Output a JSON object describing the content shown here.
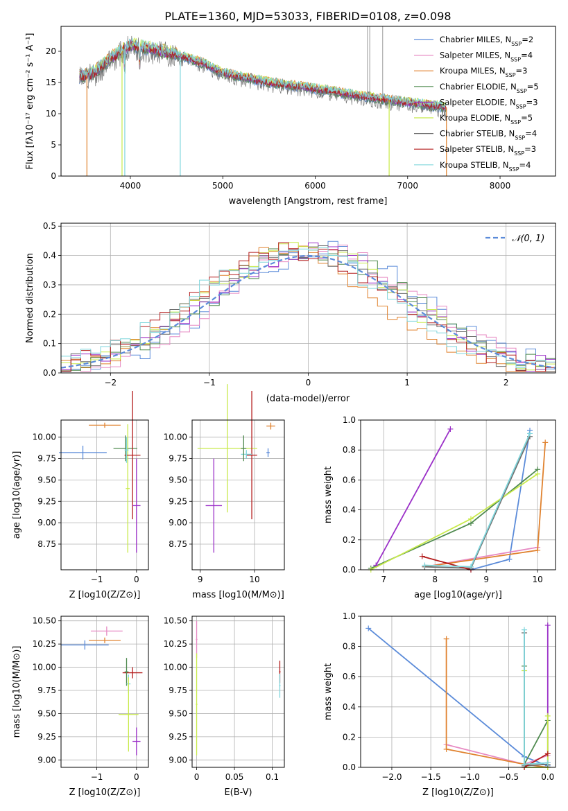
{
  "title": "PLATE=1360, MJD=53033, FIBERID=0108, z=0.098",
  "colors": {
    "Chabrier MILES": "#5b8bd9",
    "Salpeter MILES": "#e78ac3",
    "Kroupa MILES": "#e0822f",
    "Chabrier ELODIE": "#4f8a4f",
    "Salpeter ELODIE": "#9b30c8",
    "Kroupa ELODIE": "#c8ea4a",
    "Chabrier STELIB": "#6e6e6e",
    "Salpeter STELIB": "#b31b1b",
    "Kroupa STELIB": "#7fd6dc"
  },
  "legend": [
    {
      "label": "Chabrier MILES, N",
      "n": "2",
      "key": "Chabrier MILES"
    },
    {
      "label": "Salpeter MILES, N",
      "n": "4",
      "key": "Salpeter MILES"
    },
    {
      "label": "Kroupa MILES, N",
      "n": "3",
      "key": "Kroupa MILES"
    },
    {
      "label": "Chabrier ELODIE, N",
      "n": "5",
      "key": "Chabrier ELODIE"
    },
    {
      "label": "Salpeter ELODIE, N",
      "n": "3",
      "key": "Salpeter ELODIE"
    },
    {
      "label": "Kroupa ELODIE, N",
      "n": "5",
      "key": "Kroupa ELODIE"
    },
    {
      "label": "Chabrier STELIB, N",
      "n": "4",
      "key": "Chabrier STELIB"
    },
    {
      "label": "Salpeter STELIB, N",
      "n": "3",
      "key": "Salpeter STELIB"
    },
    {
      "label": "Kroupa STELIB, N",
      "n": "4",
      "key": "Kroupa STELIB"
    }
  ],
  "legend_sub": "SSP",
  "chart_data": [
    {
      "type": "line",
      "title": "PLATE=1360, MJD=53033, FIBERID=0108, z=0.098",
      "xlabel": "wavelength [Angstrom, rest frame]",
      "ylabel": "Flux [f",
      "ylabel_full": "Flux [fλ10⁻¹⁷ erg cm⁻² s⁻¹ A⁻¹]",
      "xlim": [
        3250,
        8600
      ],
      "ylim": [
        0,
        24
      ],
      "xticks": [
        4000,
        5000,
        6000,
        7000,
        8000
      ],
      "yticks": [
        0,
        5,
        10,
        15,
        20
      ],
      "spectrum_envelope": {
        "x": [
          3450,
          3600,
          3800,
          4000,
          4200,
          4500,
          4800,
          5000,
          5500,
          6000,
          6500,
          7000,
          7400
        ],
        "y": [
          16.0,
          16.5,
          19.0,
          21.0,
          20.5,
          19.5,
          18.0,
          16.5,
          15.0,
          14.0,
          12.8,
          11.8,
          11.0
        ]
      },
      "absorption_dips": [
        3530,
        3910,
        3940,
        4540,
        6800,
        7420
      ],
      "emission_lines": [
        6565,
        6590,
        6730
      ]
    },
    {
      "type": "histogram",
      "xlabel": "(data-model)/error",
      "ylabel": "Normed distribution",
      "xlim": [
        -2.5,
        2.5
      ],
      "ylim": [
        0,
        0.51
      ],
      "xticks": [
        -2,
        -1,
        0,
        1,
        2
      ],
      "yticks": [
        0.0,
        0.1,
        0.2,
        0.3,
        0.4,
        0.5
      ],
      "bin_width": 0.1,
      "reference_curve": "N(0,1)",
      "legend": "𝒩(0, 1)"
    },
    {
      "type": "scatter",
      "xlabel": "Z [log",
      "xlabel_full": "Z [log10(Z/Z⊙)]",
      "ylabel_full": "age [log10(age/yr)]",
      "xlim": [
        -1.9,
        0.3
      ],
      "ylim": [
        8.45,
        10.2
      ],
      "xticks": [
        -1,
        0
      ],
      "yticks": [
        8.75,
        9.0,
        9.25,
        9.5,
        9.75,
        10.0
      ],
      "points": [
        {
          "s": "Chabrier MILES",
          "x": -1.35,
          "y": 9.82,
          "xerr": 0.6,
          "yerr": 0.08
        },
        {
          "s": "Kroupa MILES",
          "x": -0.8,
          "y": 10.14,
          "xerr": 0.4,
          "yerr": 0.03
        },
        {
          "s": "Chabrier ELODIE",
          "x": -0.28,
          "y": 9.87,
          "xerr": 0.3,
          "yerr": 0.15
        },
        {
          "s": "Kroupa ELODIE",
          "x": -0.22,
          "y": 9.4,
          "xerr": 0.05,
          "yerr": 0.75
        },
        {
          "s": "Salpeter STELIB",
          "x": -0.1,
          "y": 9.79,
          "xerr": 0.2,
          "yerr": 0.75
        },
        {
          "s": "Salpeter ELODIE",
          "x": 0.0,
          "y": 9.2,
          "xerr": 0.1,
          "yerr": 0.55
        },
        {
          "s": "Kroupa STELIB",
          "x": -0.25,
          "y": 9.85,
          "xerr": 0.05,
          "yerr": 0.15
        }
      ]
    },
    {
      "type": "scatter",
      "xlabel_full": "mass [log10(M/M⊙)]",
      "xlim": [
        8.85,
        10.55
      ],
      "ylim": [
        8.45,
        10.2
      ],
      "xticks": [
        9,
        10
      ],
      "yticks": [
        8.75,
        9.0,
        9.25,
        9.5,
        9.75,
        10.0
      ],
      "points": [
        {
          "s": "Chabrier MILES",
          "x": 10.25,
          "y": 9.82,
          "xerr": 0.03,
          "yerr": 0.05
        },
        {
          "s": "Kroupa MILES",
          "x": 10.3,
          "y": 10.13,
          "xerr": 0.08,
          "yerr": 0.04
        },
        {
          "s": "Kroupa ELODIE",
          "x": 9.5,
          "y": 9.87,
          "xerr": 0.55,
          "yerr": 0.75
        },
        {
          "s": "Salpeter ELODIE",
          "x": 9.25,
          "y": 9.2,
          "xerr": 0.15,
          "yerr": 0.55
        },
        {
          "s": "Salpeter STELIB",
          "x": 9.95,
          "y": 9.79,
          "xerr": 0.1,
          "yerr": 0.75
        },
        {
          "s": "Kroupa STELIB",
          "x": 9.85,
          "y": 9.8,
          "xerr": 0.1,
          "yerr": 0.05
        },
        {
          "s": "Chabrier ELODIE",
          "x": 9.8,
          "y": 9.87,
          "xerr": 0.05,
          "yerr": 0.15
        }
      ]
    },
    {
      "type": "line",
      "xlabel_full": "age  [log10(age/yr)]",
      "ylabel": "mass weight",
      "xlim": [
        6.55,
        10.35
      ],
      "ylim": [
        0,
        1.0
      ],
      "xticks": [
        7,
        8,
        9,
        10
      ],
      "yticks": [
        0.0,
        0.2,
        0.4,
        0.6,
        0.8,
        1.0
      ],
      "series": [
        {
          "s": "Chabrier MILES",
          "x": [
            8.7,
            9.45,
            9.85
          ],
          "y": [
            0.0,
            0.07,
            0.93
          ]
        },
        {
          "s": "Salpeter MILES",
          "x": [
            7.8,
            10.0
          ],
          "y": [
            0.02,
            0.15
          ]
        },
        {
          "s": "Kroupa MILES",
          "x": [
            7.8,
            10.0,
            10.15
          ],
          "y": [
            0.02,
            0.13,
            0.85
          ]
        },
        {
          "s": "Chabrier ELODIE",
          "x": [
            6.75,
            8.7,
            10.0
          ],
          "y": [
            0.01,
            0.31,
            0.67
          ]
        },
        {
          "s": "Salpeter ELODIE",
          "x": [
            6.85,
            8.3
          ],
          "y": [
            0.03,
            0.94
          ]
        },
        {
          "s": "Kroupa ELODIE",
          "x": [
            6.75,
            8.7,
            10.0
          ],
          "y": [
            0.0,
            0.34,
            0.64
          ]
        },
        {
          "s": "Chabrier STELIB",
          "x": [
            7.8,
            8.7,
            9.85
          ],
          "y": [
            0.02,
            0.01,
            0.89
          ]
        },
        {
          "s": "Salpeter STELIB",
          "x": [
            7.75,
            8.7
          ],
          "y": [
            0.09,
            0.0
          ]
        },
        {
          "s": "Kroupa STELIB",
          "x": [
            7.8,
            8.7,
            9.85
          ],
          "y": [
            0.03,
            0.02,
            0.91
          ]
        }
      ]
    },
    {
      "type": "scatter",
      "xlabel_full": "Z [log10(Z/Z⊙)]",
      "ylabel_full": "mass [log10(M/M⊙)]",
      "xlim": [
        -1.9,
        0.3
      ],
      "ylim": [
        8.92,
        10.55
      ],
      "xticks": [
        -1,
        0
      ],
      "yticks": [
        9.0,
        9.25,
        9.5,
        9.75,
        10.0,
        10.25,
        10.5
      ],
      "points": [
        {
          "s": "Chabrier MILES",
          "x": -1.3,
          "y": 10.24,
          "xerr": 0.6,
          "yerr": 0.05
        },
        {
          "s": "Salpeter MILES",
          "x": -0.75,
          "y": 10.39,
          "xerr": 0.4,
          "yerr": 0.05
        },
        {
          "s": "Kroupa MILES",
          "x": -0.8,
          "y": 10.29,
          "xerr": 0.4,
          "yerr": 0.03
        },
        {
          "s": "Salpeter STELIB",
          "x": -0.1,
          "y": 9.94,
          "xerr": 0.25,
          "yerr": 0.06
        },
        {
          "s": "Chabrier ELODIE",
          "x": -0.25,
          "y": 9.95,
          "xerr": 0.05,
          "yerr": 0.15
        },
        {
          "s": "Kroupa STELIB",
          "x": -0.2,
          "y": 9.82,
          "xerr": 0.05,
          "yerr": 0.1
        },
        {
          "s": "Kroupa ELODIE",
          "x": -0.2,
          "y": 9.49,
          "xerr": 0.25,
          "yerr": 0.4
        },
        {
          "s": "Salpeter ELODIE",
          "x": 0.0,
          "y": 9.2,
          "xerr": 0.1,
          "yerr": 0.15
        }
      ]
    },
    {
      "type": "scatter",
      "xlabel": "E(B-V)",
      "xlim": [
        -0.006,
        0.116
      ],
      "ylim": [
        8.92,
        10.55
      ],
      "xticks": [
        0.0,
        0.05,
        0.1
      ],
      "yticks": [
        9.0,
        9.25,
        9.5,
        9.75,
        10.0,
        10.25,
        10.5
      ],
      "points": [
        {
          "s": "Salpeter MILES",
          "x": 0.0,
          "y": 10.3,
          "xerr": 0.001,
          "yerr": 0.2
        },
        {
          "s": "Kroupa ELODIE",
          "x": 0.0,
          "y": 9.6,
          "xerr": 0.001,
          "yerr": 0.55
        },
        {
          "s": "Salpeter STELIB",
          "x": 0.11,
          "y": 9.95,
          "xerr": 0.001,
          "yerr": 0.12
        },
        {
          "s": "Kroupa STELIB",
          "x": 0.11,
          "y": 9.8,
          "xerr": 0.001,
          "yerr": 0.13
        }
      ]
    },
    {
      "type": "line",
      "xlabel_full": "Z [log10(Z/Z⊙)]",
      "ylabel": "mass weight",
      "xlim": [
        -2.4,
        0.1
      ],
      "ylim": [
        0,
        1.0
      ],
      "xticks": [
        -2.0,
        -1.5,
        -1.0,
        -0.5,
        0.0
      ],
      "yticks": [
        0.0,
        0.2,
        0.4,
        0.6,
        0.8,
        1.0
      ],
      "series": [
        {
          "s": "Chabrier MILES",
          "x": [
            -2.3,
            -0.3,
            0.0
          ],
          "y": [
            0.92,
            0.07,
            0.01
          ]
        },
        {
          "s": "Salpeter MILES",
          "x": [
            -1.3,
            -0.3,
            0.0
          ],
          "y": [
            0.15,
            0.02,
            0.08
          ]
        },
        {
          "s": "Kroupa MILES",
          "x": [
            -1.3,
            -1.3,
            -0.3,
            0.0
          ],
          "y": [
            0.85,
            0.12,
            0.02,
            0.0
          ]
        },
        {
          "s": "Chabrier ELODIE",
          "x": [
            -0.3,
            -0.3,
            0.0
          ],
          "y": [
            0.67,
            0.02,
            0.31
          ]
        },
        {
          "s": "Salpeter ELODIE",
          "x": [
            0.0,
            0.0
          ],
          "y": [
            0.94,
            0.03
          ]
        },
        {
          "s": "Kroupa ELODIE",
          "x": [
            -0.3,
            -0.3,
            0.0,
            0.0
          ],
          "y": [
            0.64,
            0.0,
            0.0,
            0.34
          ]
        },
        {
          "s": "Chabrier STELIB",
          "x": [
            -0.3,
            -0.3,
            0.0
          ],
          "y": [
            0.89,
            0.01,
            0.02
          ]
        },
        {
          "s": "Salpeter STELIB",
          "x": [
            -0.3,
            0.0
          ],
          "y": [
            0.0,
            0.09
          ]
        },
        {
          "s": "Kroupa STELIB",
          "x": [
            -0.3,
            -0.3,
            0.0
          ],
          "y": [
            0.91,
            0.02,
            0.03
          ]
        }
      ]
    }
  ]
}
